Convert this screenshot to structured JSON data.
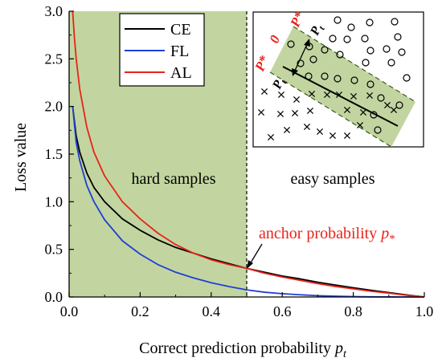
{
  "chart_data": {
    "type": "line",
    "title": "",
    "xlabel": "Correct prediction probability ",
    "xlabel_var": "p",
    "xlabel_sub": "t",
    "ylabel": "Loss value",
    "xlim": [
      0.0,
      1.0
    ],
    "ylim": [
      0.0,
      3.0
    ],
    "grid": false,
    "legend_position": "top-left",
    "x_ticks": [
      "0.0",
      "0.2",
      "0.4",
      "0.6",
      "0.8",
      "1.0"
    ],
    "y_ticks": [
      "0.0",
      "0.5",
      "1.0",
      "1.5",
      "2.0",
      "2.5",
      "3.0"
    ],
    "shaded_region": {
      "x": [
        0.0,
        0.5
      ],
      "label": "hard samples",
      "color": "#c2d5a0"
    },
    "unshaded_label": "easy samples",
    "divider_x": 0.5,
    "series": [
      {
        "name": "CE",
        "color": "#000000",
        "x": [
          0.01,
          0.02,
          0.03,
          0.05,
          0.07,
          0.1,
          0.15,
          0.2,
          0.25,
          0.3,
          0.35,
          0.4,
          0.45,
          0.5,
          0.55,
          0.6,
          0.65,
          0.7,
          0.75,
          0.8,
          0.85,
          0.9,
          0.95,
          1.0
        ],
        "y": [
          2.0,
          1.69,
          1.52,
          1.3,
          1.15,
          1.0,
          0.82,
          0.7,
          0.6,
          0.52,
          0.46,
          0.4,
          0.35,
          0.3,
          0.26,
          0.22,
          0.19,
          0.155,
          0.125,
          0.097,
          0.07,
          0.046,
          0.022,
          0.0
        ]
      },
      {
        "name": "FL",
        "color": "#1f3fd6",
        "x": [
          0.01,
          0.02,
          0.03,
          0.05,
          0.07,
          0.1,
          0.15,
          0.2,
          0.25,
          0.3,
          0.35,
          0.4,
          0.45,
          0.5,
          0.55,
          0.6,
          0.65,
          0.7,
          0.75,
          0.8,
          0.85,
          0.9,
          0.95,
          1.0
        ],
        "y": [
          2.0,
          1.62,
          1.43,
          1.17,
          1.0,
          0.81,
          0.59,
          0.45,
          0.34,
          0.26,
          0.2,
          0.15,
          0.11,
          0.075,
          0.05,
          0.035,
          0.023,
          0.014,
          0.008,
          0.0039,
          0.0016,
          0.0005,
          0.0001,
          0.0
        ]
      },
      {
        "name": "AL",
        "color": "#e8231a",
        "x": [
          0.01,
          0.015,
          0.02,
          0.03,
          0.05,
          0.07,
          0.1,
          0.15,
          0.2,
          0.25,
          0.3,
          0.35,
          0.4,
          0.45,
          0.5,
          0.55,
          0.6,
          0.65,
          0.7,
          0.75,
          0.8,
          0.85,
          0.9,
          0.95,
          1.0
        ],
        "y": [
          3.0,
          2.72,
          2.5,
          2.18,
          1.78,
          1.52,
          1.27,
          1.0,
          0.82,
          0.67,
          0.55,
          0.46,
          0.39,
          0.34,
          0.3,
          0.25,
          0.21,
          0.175,
          0.14,
          0.11,
          0.085,
          0.06,
          0.04,
          0.018,
          0.0
        ]
      }
    ],
    "annotation": {
      "text": "anchor probability ",
      "var": "p",
      "sub": "*",
      "point": [
        0.5,
        0.3
      ],
      "color": "#e8231a"
    },
    "inset": {
      "labels": {
        "p_star": "P*",
        "zero": "0",
        "p_t": "P",
        "p_t_sub": "t"
      },
      "circle_symbol": "○",
      "cross_symbol": "×",
      "band_color": "#c2d5a0"
    }
  }
}
